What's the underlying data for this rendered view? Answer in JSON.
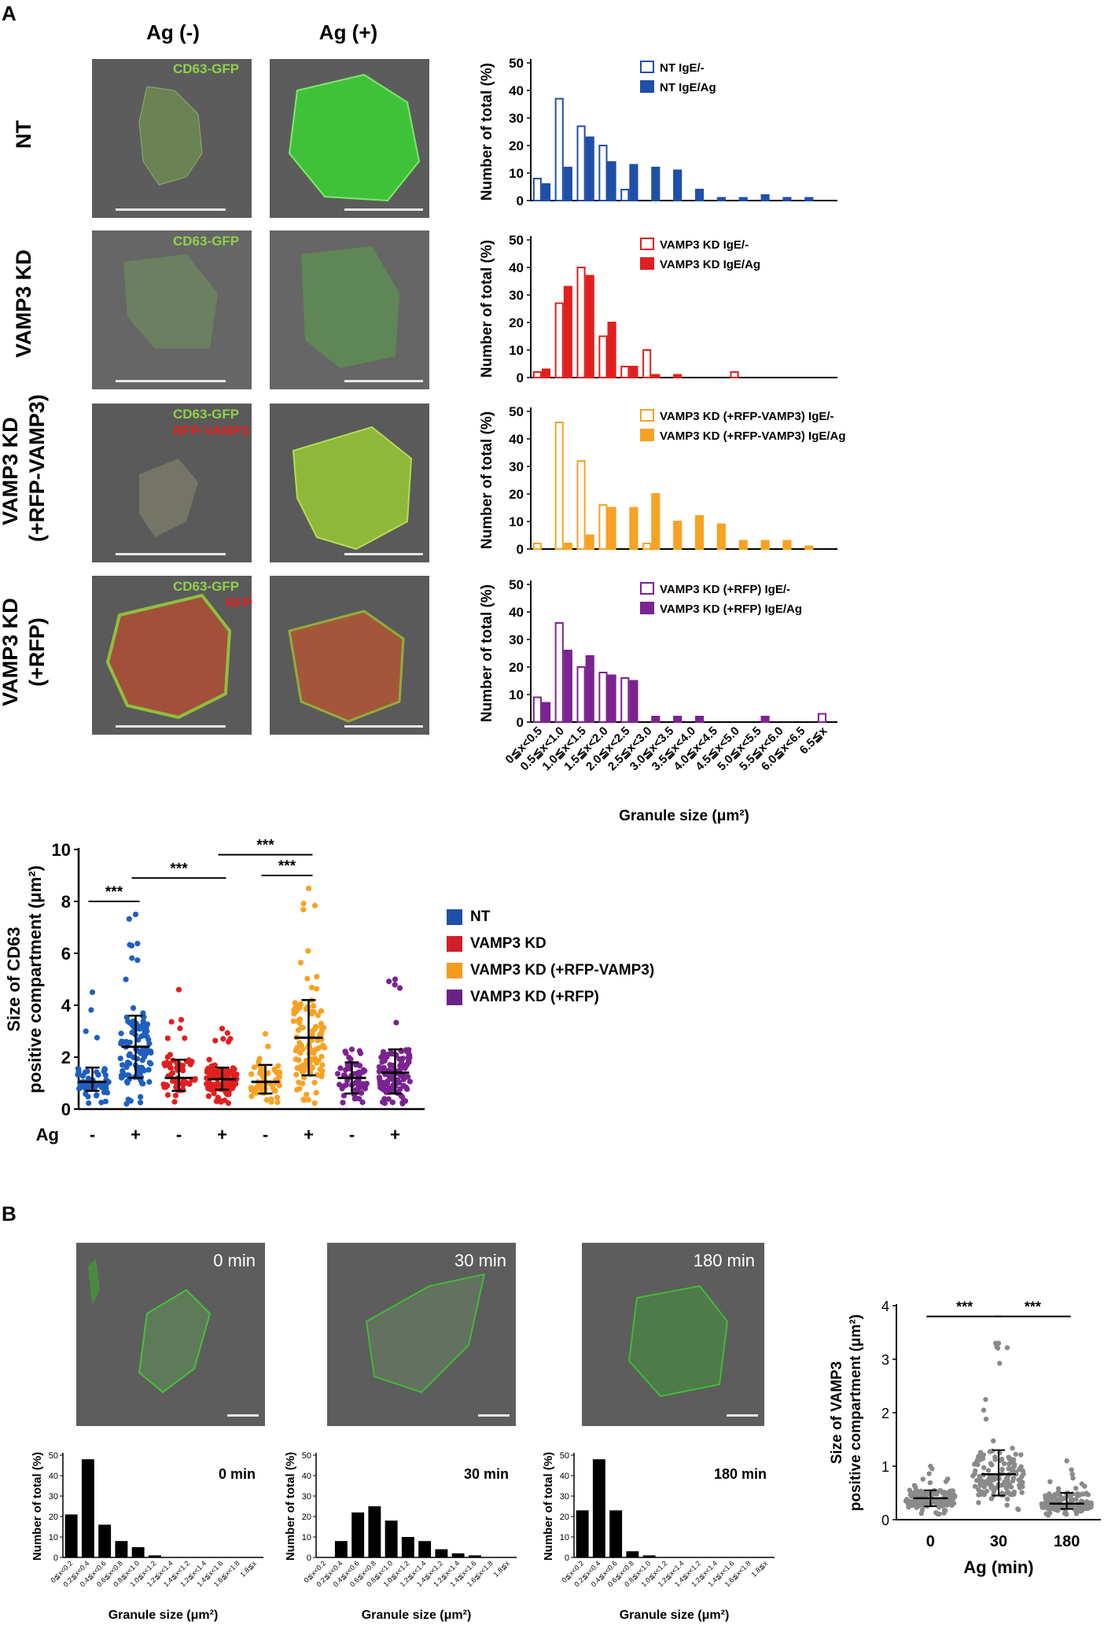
{
  "panel_labels": {
    "a": "A",
    "b": "B"
  },
  "columns": {
    "neg": "Ag (-)",
    "pos": "Ag (+)"
  },
  "rows": [
    {
      "label": "NT",
      "img_labels": [
        "CD63-GFP"
      ],
      "img_label_colors": [
        "#8fd14a"
      ]
    },
    {
      "label": "VAMP3 KD",
      "img_labels": [
        "CD63-GFP"
      ],
      "img_label_colors": [
        "#8fd14a"
      ]
    },
    {
      "label": "VAMP3 KD\n(+RFP-VAMP3)",
      "label_line1": "VAMP3 KD",
      "label_line2": "(+RFP-VAMP3)",
      "img_labels": [
        "CD63-GFP",
        "RFP-VAMP3"
      ],
      "img_label_colors": [
        "#8fd14a",
        "#e02020"
      ]
    },
    {
      "label": "VAMP3 KD\n(+RFP)",
      "label_line1": "VAMP3 KD",
      "label_line2": "(+RFP)",
      "img_labels": [
        "CD63-GFP",
        "RFP"
      ],
      "img_label_colors": [
        "#8fd14a",
        "#e02020"
      ]
    }
  ],
  "chart_data": [
    {
      "type": "bar",
      "id": "hist-nt",
      "categories": [
        "0≦x<0.5",
        "0.5≦x<1.0",
        "1.0≦x<1.5",
        "1.5≦x<2.0",
        "2.0≦x<2.5",
        "2.5≦x<3.0",
        "3.0≦x<3.5",
        "3.5≦x<4.0",
        "4.0≦x<4.5",
        "4.5≦x<5.0",
        "5.0≦x<5.5",
        "5.5≦x<6.0",
        "6.0≦x<6.5",
        "6.5≦x"
      ],
      "series": [
        {
          "name": "NT IgE/-",
          "values": [
            8,
            37,
            27,
            20,
            4,
            0,
            0,
            0,
            0,
            0,
            0,
            0,
            0,
            0
          ],
          "fill": "open"
        },
        {
          "name": "NT IgE/Ag",
          "values": [
            6,
            12,
            23,
            14,
            13,
            12,
            11,
            4,
            1,
            1,
            2,
            1,
            1,
            0
          ],
          "fill": "solid"
        }
      ],
      "color": "#1f4fa8",
      "ylabel": "Number of total (%)",
      "ylim": [
        0,
        50
      ],
      "yticks": [
        0,
        10,
        20,
        30,
        40,
        50
      ]
    },
    {
      "type": "bar",
      "id": "hist-kd",
      "categories": [
        "0≦x<0.5",
        "0.5≦x<1.0",
        "1.0≦x<1.5",
        "1.5≦x<2.0",
        "2.0≦x<2.5",
        "2.5≦x<3.0",
        "3.0≦x<3.5",
        "3.5≦x<4.0",
        "4.0≦x<4.5",
        "4.5≦x<5.0",
        "5.0≦x<5.5",
        "5.5≦x<6.0",
        "6.0≦x<6.5",
        "6.5≦x"
      ],
      "series": [
        {
          "name": "VAMP3 KD IgE/-",
          "values": [
            2,
            27,
            40,
            15,
            4,
            10,
            0,
            0,
            0,
            2,
            0,
            0,
            0,
            0
          ],
          "fill": "open"
        },
        {
          "name": "VAMP3 KD IgE/Ag",
          "values": [
            3,
            33,
            37,
            20,
            4,
            1,
            1,
            0,
            0,
            0,
            0,
            0,
            0,
            0
          ],
          "fill": "solid"
        }
      ],
      "color": "#e0201f",
      "ylabel": "Number of total (%)",
      "ylim": [
        0,
        50
      ],
      "yticks": [
        0,
        10,
        20,
        30,
        40,
        50
      ]
    },
    {
      "type": "bar",
      "id": "hist-rescue",
      "categories": [
        "0≦x<0.5",
        "0.5≦x<1.0",
        "1.0≦x<1.5",
        "1.5≦x<2.0",
        "2.0≦x<2.5",
        "2.5≦x<3.0",
        "3.0≦x<3.5",
        "3.5≦x<4.0",
        "4.0≦x<4.5",
        "4.5≦x<5.0",
        "5.0≦x<5.5",
        "5.5≦x<6.0",
        "6.0≦x<6.5",
        "6.5≦x"
      ],
      "series": [
        {
          "name": "VAMP3 KD (+RFP-VAMP3) IgE/-",
          "values": [
            2,
            46,
            32,
            16,
            0,
            2,
            0,
            0,
            0,
            0,
            0,
            0,
            0,
            0
          ],
          "fill": "open"
        },
        {
          "name": "VAMP3 KD (+RFP-VAMP3) IgE/Ag",
          "values": [
            0,
            2,
            5,
            15,
            15,
            20,
            10,
            12,
            9,
            3,
            3,
            3,
            1,
            0
          ],
          "fill": "solid"
        }
      ],
      "color": "#f7a224",
      "ylabel": "Number of total (%)",
      "ylim": [
        0,
        50
      ],
      "yticks": [
        0,
        10,
        20,
        30,
        40,
        50
      ]
    },
    {
      "type": "bar",
      "id": "hist-rfp",
      "categories": [
        "0≦x<0.5",
        "0.5≦x<1.0",
        "1.0≦x<1.5",
        "1.5≦x<2.0",
        "2.0≦x<2.5",
        "2.5≦x<3.0",
        "3.0≦x<3.5",
        "3.5≦x<4.0",
        "4.0≦x<4.5",
        "4.5≦x<5.0",
        "5.0≦x<5.5",
        "5.5≦x<6.0",
        "6.0≦x<6.5",
        "6.5≦x"
      ],
      "series": [
        {
          "name": "VAMP3 KD (+RFP) IgE/-",
          "values": [
            9,
            36,
            20,
            18,
            16,
            0,
            0,
            0,
            0,
            0,
            0,
            0,
            0,
            3
          ],
          "fill": "open"
        },
        {
          "name": "VAMP3 KD (+RFP) IgE/Ag",
          "values": [
            7,
            26,
            24,
            17,
            15,
            2,
            2,
            2,
            0,
            0,
            2,
            0,
            0,
            0
          ],
          "fill": "solid"
        }
      ],
      "color": "#7b2391",
      "ylabel": "Number of total (%)",
      "xlabel": "Granule size (μm²)",
      "ylim": [
        0,
        50
      ],
      "yticks": [
        0,
        10,
        20,
        30,
        40,
        50
      ]
    },
    {
      "type": "scatter",
      "id": "dot-cd63",
      "ylabel_line1": "Size of CD63",
      "ylabel_line2": "positive compartment (μm²)",
      "ylim": [
        0,
        10
      ],
      "yticks": [
        0,
        2,
        4,
        6,
        8,
        10
      ],
      "row_label": "Ag",
      "groups": [
        {
          "ag": "-",
          "color": "#1f5fbf",
          "median": 1.05,
          "q1": 0.7,
          "q3": 1.6,
          "max": 4.5
        },
        {
          "ag": "+",
          "color": "#1f5fbf",
          "median": 2.4,
          "q1": 1.2,
          "q3": 3.6,
          "max": 7.5
        },
        {
          "ag": "-",
          "color": "#e0201f",
          "median": 1.2,
          "q1": 0.7,
          "q3": 1.9,
          "max": 4.6
        },
        {
          "ag": "+",
          "color": "#e0201f",
          "median": 1.15,
          "q1": 0.75,
          "q3": 1.6,
          "max": 3.1
        },
        {
          "ag": "-",
          "color": "#f7a224",
          "median": 1.05,
          "q1": 0.6,
          "q3": 1.7,
          "max": 2.9
        },
        {
          "ag": "+",
          "color": "#f7a224",
          "median": 2.75,
          "q1": 1.3,
          "q3": 4.2,
          "max": 8.5
        },
        {
          "ag": "-",
          "color": "#7b2391",
          "median": 1.2,
          "q1": 0.6,
          "q3": 1.8,
          "max": 2.3
        },
        {
          "ag": "+",
          "color": "#7b2391",
          "median": 1.4,
          "q1": 0.6,
          "q3": 2.3,
          "max": 5.0
        }
      ],
      "significance": [
        {
          "label": "***",
          "from": 0,
          "to": 1,
          "y": 8.0
        },
        {
          "label": "***",
          "from": 1,
          "to": 3,
          "y": 8.9
        },
        {
          "label": "***",
          "from": 4,
          "to": 5,
          "y": 9.0
        },
        {
          "label": "***",
          "from": 3,
          "to": 5,
          "y": 9.8
        }
      ],
      "legend": [
        {
          "name": "NT",
          "color": "#1f4fa8"
        },
        {
          "name": "VAMP3 KD",
          "color": "#d0202a"
        },
        {
          "name": "VAMP3 KD (+RFP-VAMP3)",
          "color": "#f79a1c"
        },
        {
          "name": "VAMP3 KD (+RFP)",
          "color": "#6b2287"
        }
      ]
    },
    {
      "type": "bar",
      "id": "hist-b-0",
      "title": "0 min",
      "categories": [
        "0≦x<0.2",
        "0.2≦x<0.4",
        "0.4≦x<0.6",
        "0.6≦x<0.8",
        "0.8≦x<1.0",
        "1.0≦x<1.2",
        "1.2≦x<1.4",
        "1.4≦x<1.2",
        "1.2≦x<1.4",
        "1.4≦x<1.6",
        "1.6≦x<1.8",
        "1.8≦x"
      ],
      "values": [
        21,
        48,
        16,
        8,
        5,
        1,
        0,
        0,
        0,
        0,
        0,
        0
      ],
      "ylabel": "Number of total (%)",
      "xlabel": "Granule size (μm²)",
      "ylim": [
        0,
        50
      ],
      "yticks": [
        0,
        10,
        20,
        30,
        40,
        50
      ]
    },
    {
      "type": "bar",
      "id": "hist-b-30",
      "title": "30 min",
      "categories": [
        "0≦x<0.2",
        "0.2≦x<0.4",
        "0.4≦x<0.6",
        "0.6≦x<0.8",
        "0.8≦x<1.0",
        "1.0≦x<1.2",
        "1.2≦x<1.4",
        "1.4≦x<1.2",
        "1.2≦x<1.4",
        "1.4≦x<1.6",
        "1.6≦x<1.8",
        "1.8≦x"
      ],
      "values": [
        0,
        8,
        22,
        25,
        18,
        10,
        8,
        4,
        2,
        1,
        0,
        0
      ],
      "ylabel": "Number of total (%)",
      "xlabel": "Granule size (μm²)",
      "ylim": [
        0,
        50
      ],
      "yticks": [
        0,
        10,
        20,
        30,
        40,
        50
      ]
    },
    {
      "type": "bar",
      "id": "hist-b-180",
      "title": "180 min",
      "categories": [
        "0≦x<0.2",
        "0.2≦x<0.4",
        "0.4≦x<0.6",
        "0.6≦x<0.8",
        "0.8≦x<1.0",
        "1.0≦x<1.2",
        "1.2≦x<1.4",
        "1.4≦x<1.2",
        "1.2≦x<1.4",
        "1.4≦x<1.6",
        "1.6≦x<1.8",
        "1.8≦x"
      ],
      "values": [
        23,
        48,
        23,
        3,
        1,
        0,
        0,
        0,
        0,
        0,
        0,
        0
      ],
      "ylabel": "Number of total (%)",
      "xlabel": "Granule size (μm²)",
      "ylim": [
        0,
        50
      ],
      "yticks": [
        0,
        10,
        20,
        30,
        40,
        50
      ]
    },
    {
      "type": "scatter",
      "id": "dot-vamp3",
      "ylabel_line1": "Size of VAMP3",
      "ylabel_line2": "positive compartment (μm²)",
      "xlabel": "Ag (min)",
      "categories": [
        "0",
        "30",
        "180"
      ],
      "ylim": [
        0,
        4
      ],
      "yticks": [
        0,
        1,
        2,
        3,
        4
      ],
      "groups": [
        {
          "median": 0.4,
          "q1": 0.25,
          "q3": 0.55,
          "max": 1.0
        },
        {
          "median": 0.85,
          "q1": 0.45,
          "q3": 1.3,
          "max": 3.3
        },
        {
          "median": 0.3,
          "q1": 0.2,
          "q3": 0.5,
          "max": 1.1
        }
      ],
      "significance": [
        {
          "label": "***",
          "from": 0,
          "to": 1,
          "y": 3.8
        },
        {
          "label": "***",
          "from": 1,
          "to": 2,
          "y": 3.8
        }
      ],
      "color": "#8a8a8a"
    }
  ],
  "panel_b_times": [
    "0 min",
    "30 min",
    "180 min"
  ]
}
